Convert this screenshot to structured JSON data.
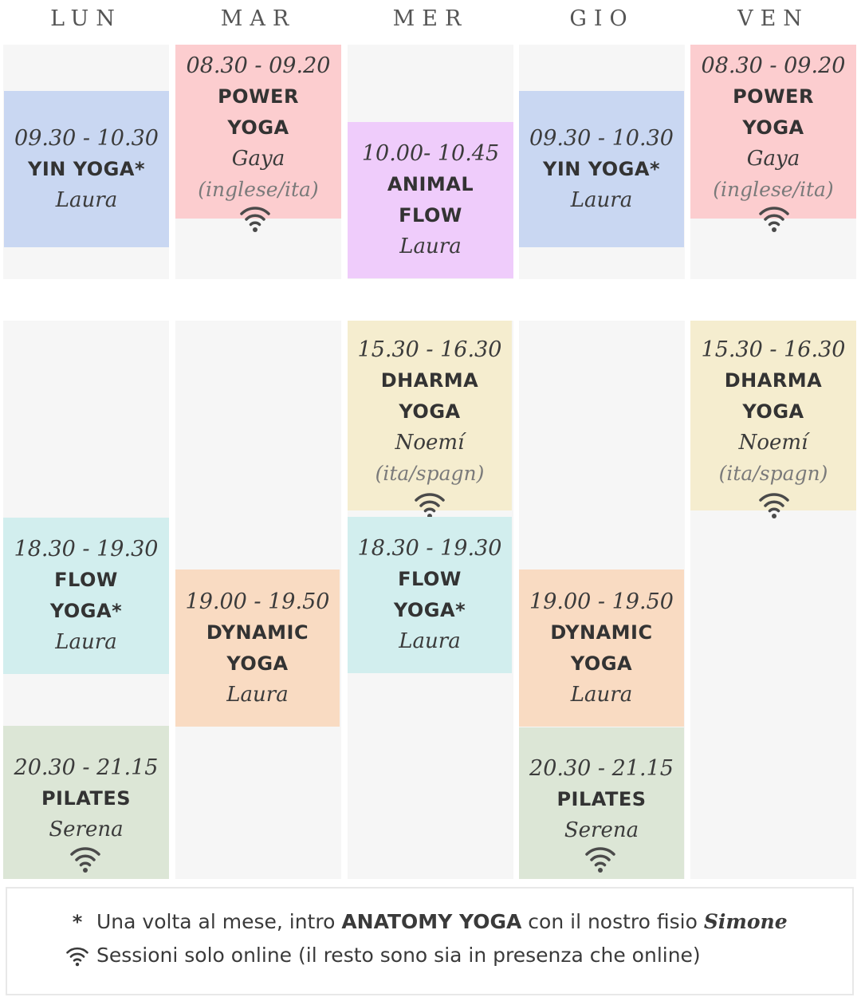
{
  "days": [
    "LUN",
    "MAR",
    "MER",
    "GIO",
    "VEN"
  ],
  "classes": {
    "lun_am": {
      "time": "09.30 - 10.30",
      "title": [
        "YIN YOGA*"
      ],
      "teacher": "Laura"
    },
    "mar_am": {
      "time": "08.30 - 09.20",
      "title": [
        "POWER",
        "YOGA"
      ],
      "teacher": "Gaya",
      "lang": "(inglese/ita)",
      "online_only": true
    },
    "mer_am": {
      "time": "10.00- 10.45",
      "title": [
        "ANIMAL",
        "FLOW"
      ],
      "teacher": "Laura"
    },
    "gio_am": {
      "time": "09.30 - 10.30",
      "title": [
        "YIN YOGA*"
      ],
      "teacher": "Laura"
    },
    "ven_am": {
      "time": "08.30 - 09.20",
      "title": [
        "POWER",
        "YOGA"
      ],
      "teacher": "Gaya",
      "lang": "(inglese/ita)",
      "online_only": true
    },
    "mer_pm1": {
      "time": "15.30 - 16.30",
      "title": [
        "DHARMA",
        "YOGA"
      ],
      "teacher": "Noemí",
      "lang": "(ita/spagn)",
      "online_only": true
    },
    "ven_pm1": {
      "time": "15.30 - 16.30",
      "title": [
        "DHARMA",
        "YOGA"
      ],
      "teacher": "Noemí",
      "lang": "(ita/spagn)",
      "online_only": true
    },
    "lun_pm1": {
      "time": "18.30 - 19.30",
      "title": [
        "FLOW",
        "YOGA*"
      ],
      "teacher": "Laura"
    },
    "mer_pm2": {
      "time": "18.30 - 19.30",
      "title": [
        "FLOW",
        "YOGA*"
      ],
      "teacher": "Laura"
    },
    "mar_pm1": {
      "time": "19.00 - 19.50",
      "title": [
        "DYNAMIC",
        "YOGA"
      ],
      "teacher": "Laura"
    },
    "gio_pm1": {
      "time": "19.00 - 19.50",
      "title": [
        "DYNAMIC",
        "YOGA"
      ],
      "teacher": "Laura"
    },
    "lun_pm2": {
      "time": "20.30 - 21.15",
      "title": [
        "PILATES"
      ],
      "teacher": "Serena",
      "online_only": true
    },
    "gio_pm2": {
      "time": "20.30 - 21.15",
      "title": [
        "PILATES"
      ],
      "teacher": "Serena",
      "online_only": true
    }
  },
  "legend": {
    "star_symbol": "*",
    "line1_a": "Una volta al mese, intro ",
    "line1_b": "ANATOMY YOGA",
    "line1_c": " con il nostro fisio ",
    "line1_d": "Simone",
    "line2": "Sessioni solo online (il resto sono sia in presenza che online)"
  },
  "colors": {
    "yin": "#c9d7f2",
    "power": "#fccdcf",
    "animal": "#efccfb",
    "dharma": "#f5edcf",
    "flow": "#d2eeee",
    "dynamic": "#f9dbc2",
    "pilates": "#dce6d6",
    "column_bg": "#f6f6f6"
  },
  "icons": {
    "online": "wifi-icon"
  }
}
